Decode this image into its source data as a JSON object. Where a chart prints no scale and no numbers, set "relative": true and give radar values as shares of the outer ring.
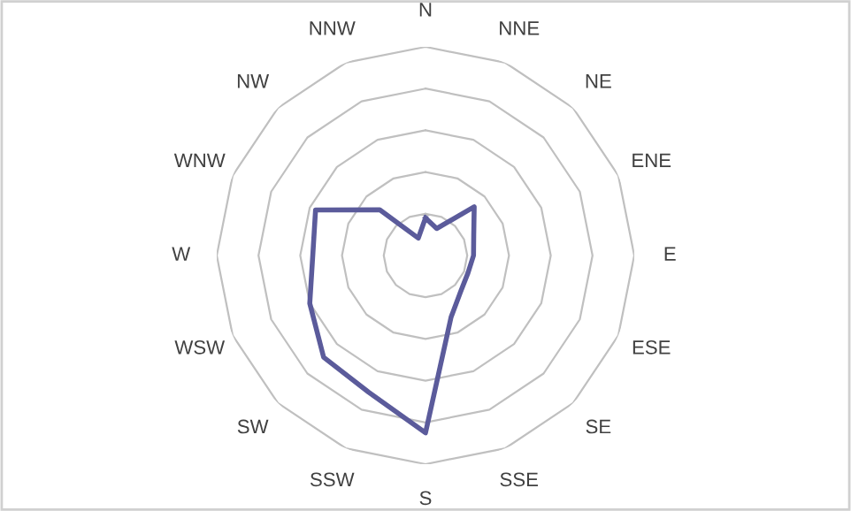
{
  "chart_data": {
    "type": "radar",
    "relative": true,
    "categories": [
      "N",
      "NNE",
      "NE",
      "ENE",
      "E",
      "ESE",
      "SE",
      "SSE",
      "S",
      "SSW",
      "SW",
      "WSW",
      "W",
      "WNW",
      "NW",
      "NNW"
    ],
    "series": [
      {
        "color": "#5b5b9b",
        "values": [
          0.18,
          0.14,
          0.33,
          0.25,
          0.23,
          0.22,
          0.24,
          0.32,
          0.85,
          0.71,
          0.69,
          0.6,
          0.54,
          0.57,
          0.31,
          0.09
        ]
      }
    ],
    "legend": false,
    "grid": true
  }
}
